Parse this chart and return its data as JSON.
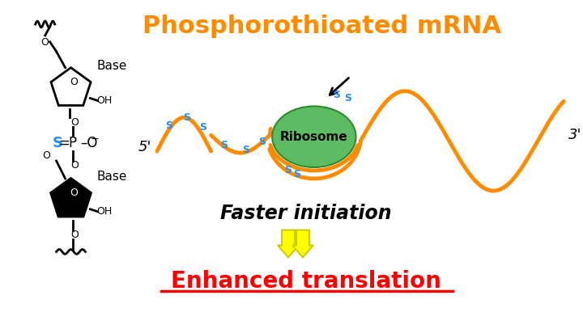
{
  "title": "Phosphorothioated mRNA",
  "title_color": "#FF8C00",
  "title_fontsize": 22,
  "label_5prime": "5'",
  "label_3prime": "3'",
  "ribosome_label": "Ribosome",
  "ribosome_color": "#5DBB63",
  "faster_text": "Faster initiation",
  "enhanced_text": "Enhanced translation",
  "enhanced_color": "#FF0000",
  "s_label_color": "#1E90FF",
  "mrna_color": "#FF8C00",
  "background_color": "#FFFFFF"
}
